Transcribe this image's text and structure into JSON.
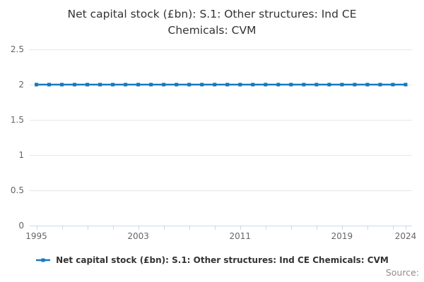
{
  "title_lines": [
    "Net capital stock (£bn): S.1: Other structures: Ind CE",
    "Chemicals: CVM"
  ],
  "legend": {
    "label": "Net capital stock (£bn): S.1: Other structures: Ind CE Chemicals: CVM"
  },
  "source_label": "Source:",
  "colors": {
    "line": "#1678be",
    "grid": "#e6e6e6",
    "axis": "#ccd6eb",
    "tick_label": "#666666",
    "title": "#333333",
    "legend_text": "#333333",
    "source": "#8c8c8c"
  },
  "chart_data": {
    "type": "line",
    "title": "Net capital stock (£bn): S.1: Other structures: Ind CE Chemicals: CVM",
    "x": [
      1995,
      1996,
      1997,
      1998,
      1999,
      2000,
      2001,
      2002,
      2003,
      2004,
      2005,
      2006,
      2007,
      2008,
      2009,
      2010,
      2011,
      2012,
      2013,
      2014,
      2015,
      2016,
      2017,
      2018,
      2019,
      2020,
      2021,
      2022,
      2023,
      2024
    ],
    "series": [
      {
        "name": "Net capital stock (£bn): S.1: Other structures: Ind CE Chemicals: CVM",
        "values": [
          2,
          2,
          2,
          2,
          2,
          2,
          2,
          2,
          2,
          2,
          2,
          2,
          2,
          2,
          2,
          2,
          2,
          2,
          2,
          2,
          2,
          2,
          2,
          2,
          2,
          2,
          2,
          2,
          2,
          2
        ]
      }
    ],
    "xlabel": "",
    "ylabel": "",
    "xlim": [
      1994.5,
      2024.5
    ],
    "ylim": [
      0,
      2.5
    ],
    "yticks": [
      "0",
      "0.5",
      "1",
      "1.5",
      "2",
      "2.5"
    ],
    "ytick_values": [
      0,
      0.5,
      1,
      1.5,
      2,
      2.5
    ],
    "xtick_labels": [
      "1995",
      "2003",
      "2011",
      "2019",
      "2024"
    ],
    "xtick_label_values": [
      1995,
      2003,
      2011,
      2019,
      2024
    ],
    "xtick_minor_start": 1995,
    "xtick_minor_interval": 2,
    "grid": true,
    "legend_position": "bottom",
    "marker": "square"
  }
}
